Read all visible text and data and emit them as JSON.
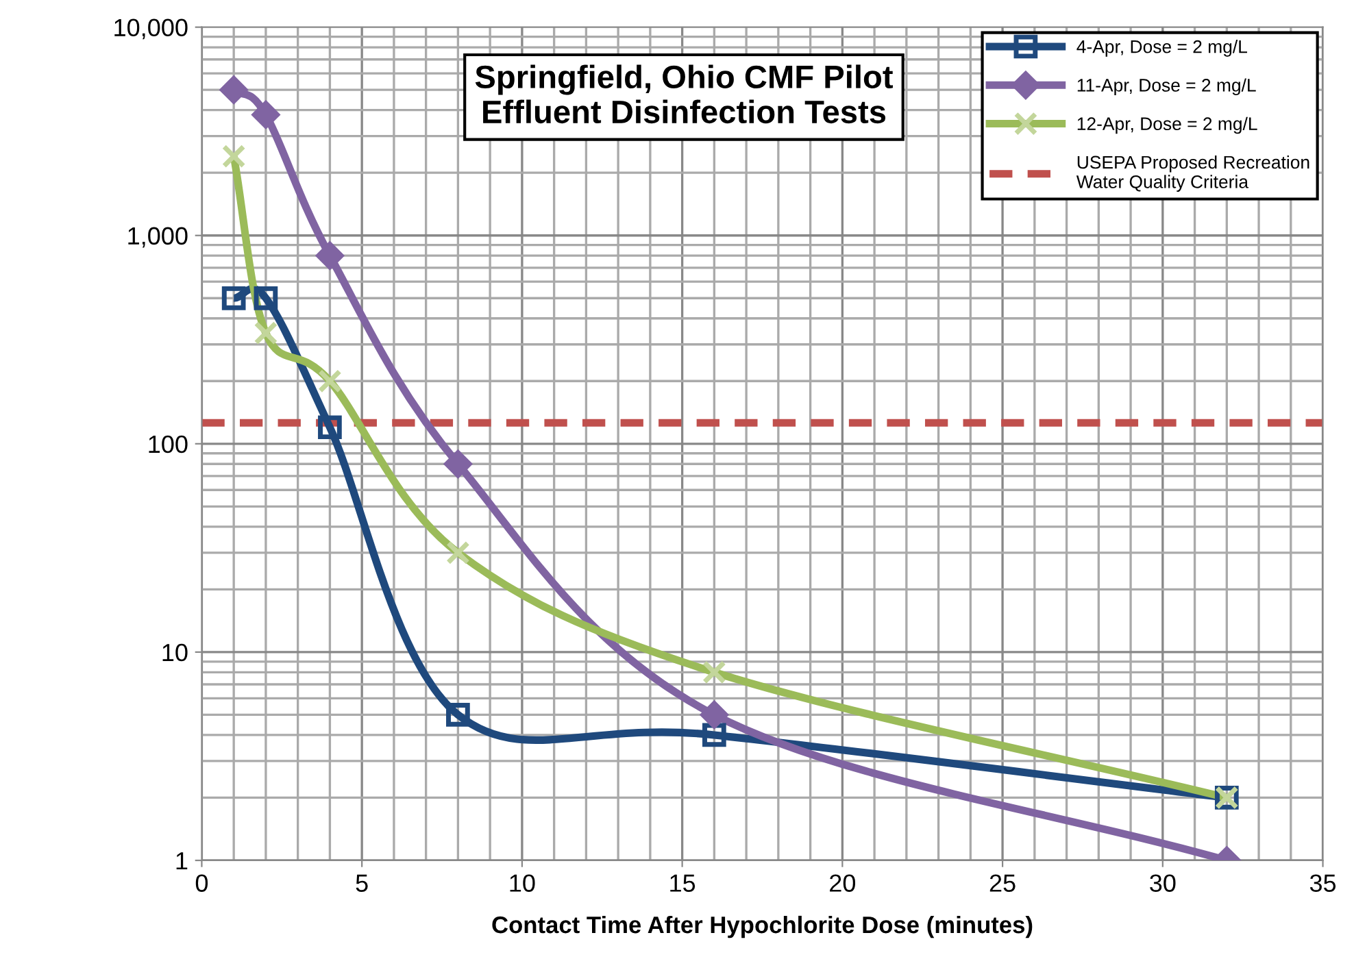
{
  "chart_data": {
    "type": "line",
    "title": "Springfield, Ohio CMF Pilot\nEffluent Disinfection Tests",
    "xlabel": "Contact Time After Hypochlorite Dose (minutes)",
    "log": "y",
    "xlim": [
      0,
      35
    ],
    "xticks": [
      0,
      5,
      10,
      15,
      20,
      25,
      30,
      35
    ],
    "ylim": [
      1,
      10000
    ],
    "yticks": [
      {
        "value": 1,
        "label": "1"
      },
      {
        "value": 10,
        "label": "10"
      },
      {
        "value": 100,
        "label": "100"
      },
      {
        "value": 1000,
        "label": "1,000"
      },
      {
        "value": 10000,
        "label": "10,000"
      }
    ],
    "grid": true,
    "legend": "top right",
    "series": [
      {
        "name": "4-Apr, Dose = 2 mg/L",
        "color": "#1f497d",
        "marker": "square",
        "x": [
          1,
          2,
          4,
          8,
          16,
          32
        ],
        "values": [
          500,
          500,
          120,
          5,
          4,
          2
        ]
      },
      {
        "name": "11-Apr, Dose = 2 mg/L",
        "color": "#8064a2",
        "marker": "diamond",
        "x": [
          1,
          2,
          4,
          8,
          16,
          32
        ],
        "values": [
          5000,
          3800,
          800,
          80,
          5,
          1
        ]
      },
      {
        "name": "12-Apr, Dose = 2 mg/L",
        "color": "#9bbb59",
        "marker": "cross",
        "x": [
          1,
          2,
          4,
          8,
          16,
          32
        ],
        "values": [
          2400,
          340,
          200,
          30,
          8,
          2
        ]
      }
    ],
    "ref_lines": [
      {
        "axis": "y",
        "value": 126,
        "label": "USEPA Proposed Recreation\nWater Quality Criteria",
        "color": "#c0504d",
        "line_style": "dashed"
      }
    ]
  }
}
